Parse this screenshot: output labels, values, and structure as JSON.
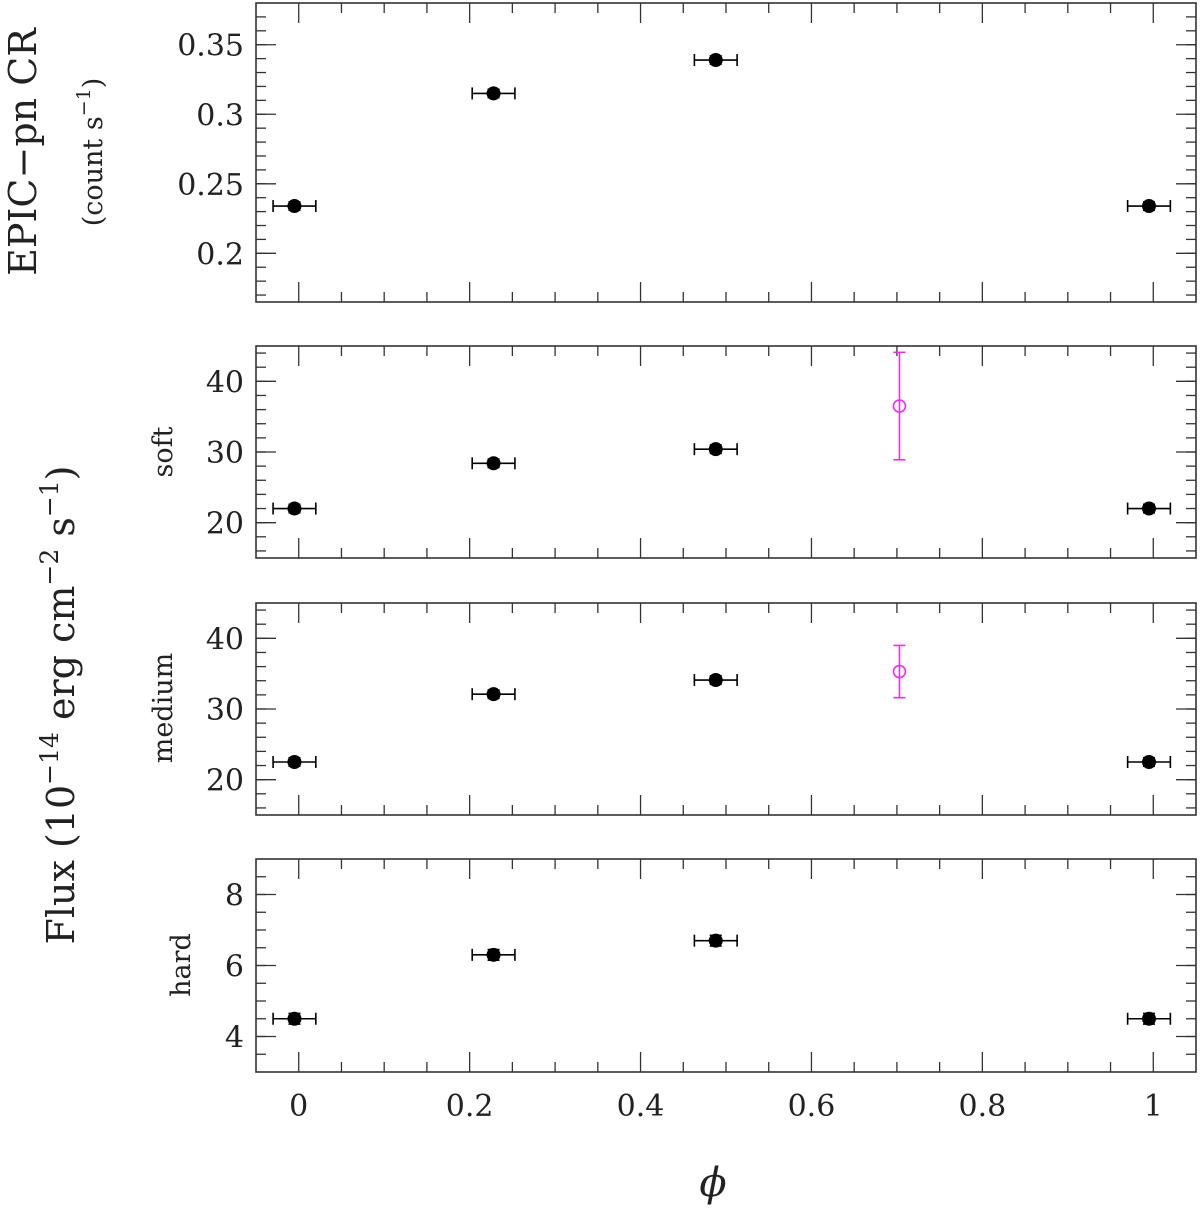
{
  "chart_data": [
    {
      "type": "scatter",
      "panel": "count-rate",
      "ylabel_line1": "EPIC−pn CR",
      "ylabel_line2": "(count s",
      "ylabel_line2_sup": "−1",
      "ylabel_line2_end": ")",
      "ylim": [
        0.165,
        0.38
      ],
      "yticks_major": [
        "0.2",
        "0.25",
        "0.3",
        "0.35"
      ],
      "series": [
        {
          "color": "#000000",
          "marker": "filled-circle",
          "points": [
            {
              "x": -0.005,
              "y": 0.234,
              "xerr": 0.025,
              "yerr": 0.003
            },
            {
              "x": 0.228,
              "y": 0.315,
              "xerr": 0.025,
              "yerr": 0.003
            },
            {
              "x": 0.488,
              "y": 0.339,
              "xerr": 0.025,
              "yerr": 0.003
            },
            {
              "x": 0.995,
              "y": 0.234,
              "xerr": 0.025,
              "yerr": 0.003
            }
          ]
        }
      ]
    },
    {
      "type": "scatter",
      "panel": "soft",
      "ylabel": "soft",
      "ylim": [
        15,
        45
      ],
      "yticks_major": [
        "20",
        "30",
        "40"
      ],
      "series": [
        {
          "color": "#000000",
          "marker": "filled-circle",
          "points": [
            {
              "x": -0.005,
              "y": 22,
              "xerr": 0.025,
              "yerr": 0.6
            },
            {
              "x": 0.228,
              "y": 28.4,
              "xerr": 0.025,
              "yerr": 0.6
            },
            {
              "x": 0.488,
              "y": 30.4,
              "xerr": 0.025,
              "yerr": 0.6
            },
            {
              "x": 0.995,
              "y": 22,
              "xerr": 0.025,
              "yerr": 0.6
            }
          ]
        },
        {
          "color": "#e633e6",
          "marker": "open-circle",
          "points": [
            {
              "x": 0.703,
              "y": 36.5,
              "xerr": 0,
              "yerr": 7.6
            }
          ]
        }
      ]
    },
    {
      "type": "scatter",
      "panel": "medium",
      "ylabel": "medium",
      "ylim": [
        15,
        45
      ],
      "yticks_major": [
        "20",
        "30",
        "40"
      ],
      "series": [
        {
          "color": "#000000",
          "marker": "filled-circle",
          "points": [
            {
              "x": -0.005,
              "y": 22.5,
              "xerr": 0.025,
              "yerr": 0.6
            },
            {
              "x": 0.228,
              "y": 32.1,
              "xerr": 0.025,
              "yerr": 0.6
            },
            {
              "x": 0.488,
              "y": 34.1,
              "xerr": 0.025,
              "yerr": 0.6
            },
            {
              "x": 0.995,
              "y": 22.5,
              "xerr": 0.025,
              "yerr": 0.6
            }
          ]
        },
        {
          "color": "#e633e6",
          "marker": "open-circle",
          "points": [
            {
              "x": 0.703,
              "y": 35.3,
              "xerr": 0,
              "yerr": 3.7
            }
          ]
        }
      ]
    },
    {
      "type": "scatter",
      "panel": "hard",
      "ylabel": "hard",
      "ylim": [
        3,
        9
      ],
      "yticks_major": [
        "4",
        "6",
        "8"
      ],
      "series": [
        {
          "color": "#000000",
          "marker": "filled-circle",
          "points": [
            {
              "x": -0.005,
              "y": 4.5,
              "xerr": 0.025,
              "yerr": 0.15
            },
            {
              "x": 0.228,
              "y": 6.3,
              "xerr": 0.025,
              "yerr": 0.15
            },
            {
              "x": 0.488,
              "y": 6.7,
              "xerr": 0.025,
              "yerr": 0.15
            },
            {
              "x": 0.995,
              "y": 4.5,
              "xerr": 0.025,
              "yerr": 0.15
            }
          ]
        }
      ]
    }
  ],
  "shared": {
    "xlim": [
      -0.05,
      1.05
    ],
    "xticks_major": [
      "0",
      "0.2",
      "0.4",
      "0.6",
      "0.8",
      "1"
    ],
    "xlabel": "ϕ",
    "flux_label_main": "Flux (10",
    "flux_label_sup1": "−14",
    "flux_label_mid": " erg cm",
    "flux_label_sup2": "−2",
    "flux_label_mid2": " s",
    "flux_label_sup3": "−1",
    "flux_label_end": ")"
  }
}
